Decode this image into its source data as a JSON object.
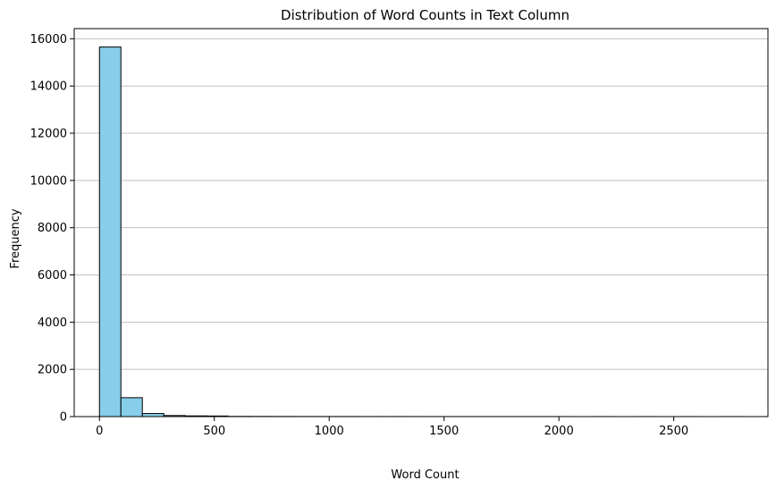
{
  "chart_data": {
    "type": "bar",
    "title": "Distribution of Word Counts in Text Column",
    "xlabel": "Word Count",
    "ylabel": "Frequency",
    "bin_width": 93.3,
    "bins": [
      {
        "start": 0,
        "end": 93.3,
        "count": 15650
      },
      {
        "start": 93.3,
        "end": 186.7,
        "count": 800
      },
      {
        "start": 186.7,
        "end": 280,
        "count": 130
      },
      {
        "start": 280,
        "end": 373.3,
        "count": 45
      },
      {
        "start": 373.3,
        "end": 466.7,
        "count": 30
      },
      {
        "start": 466.7,
        "end": 560,
        "count": 25
      },
      {
        "start": 560,
        "end": 653.3,
        "count": 8
      },
      {
        "start": 653.3,
        "end": 746.7,
        "count": 6
      },
      {
        "start": 746.7,
        "end": 840,
        "count": 5
      },
      {
        "start": 840,
        "end": 933.3,
        "count": 4
      },
      {
        "start": 933.3,
        "end": 1026.7,
        "count": 3
      },
      {
        "start": 1026.7,
        "end": 1120,
        "count": 3
      },
      {
        "start": 1120,
        "end": 1213.3,
        "count": 2
      },
      {
        "start": 1213.3,
        "end": 1306.7,
        "count": 2
      },
      {
        "start": 1306.7,
        "end": 1400,
        "count": 2
      },
      {
        "start": 1400,
        "end": 1493.3,
        "count": 1
      },
      {
        "start": 1493.3,
        "end": 1586.7,
        "count": 1
      },
      {
        "start": 1586.7,
        "end": 1680,
        "count": 1
      },
      {
        "start": 1680,
        "end": 1773.3,
        "count": 1
      },
      {
        "start": 1773.3,
        "end": 1866.7,
        "count": 1
      },
      {
        "start": 1866.7,
        "end": 1960,
        "count": 1
      },
      {
        "start": 1960,
        "end": 2053.3,
        "count": 1
      },
      {
        "start": 2053.3,
        "end": 2146.7,
        "count": 0
      },
      {
        "start": 2146.7,
        "end": 2240,
        "count": 1
      },
      {
        "start": 2240,
        "end": 2333.3,
        "count": 0
      },
      {
        "start": 2333.3,
        "end": 2426.7,
        "count": 1
      },
      {
        "start": 2426.7,
        "end": 2520,
        "count": 0
      },
      {
        "start": 2520,
        "end": 2613.3,
        "count": 1
      },
      {
        "start": 2613.3,
        "end": 2706.7,
        "count": 0
      },
      {
        "start": 2706.7,
        "end": 2800,
        "count": 1
      }
    ],
    "xlim": [
      -110,
      2910
    ],
    "ylim": [
      0,
      16430
    ],
    "x_ticks": [
      0,
      500,
      1000,
      1500,
      2000,
      2500
    ],
    "y_ticks": [
      0,
      2000,
      4000,
      6000,
      8000,
      10000,
      12000,
      14000,
      16000
    ],
    "grid": "y",
    "bar_color": "#87ceeb",
    "edge_color": "#000000",
    "grid_color": "#b0b0b0"
  }
}
